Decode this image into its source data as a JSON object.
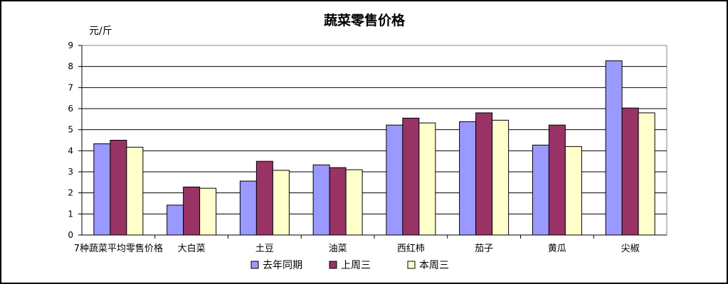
{
  "chart_data": {
    "type": "bar",
    "title": "蔬菜零售价格",
    "ylabel": "元/斤",
    "xlabel": "",
    "ylim": [
      0,
      9
    ],
    "yticks": [
      0,
      1,
      2,
      3,
      4,
      5,
      6,
      7,
      8,
      9
    ],
    "grid": true,
    "legend_position": "bottom",
    "categories": [
      "7种蔬菜平均零售价格",
      "大白菜",
      "土豆",
      "油菜",
      "西红柿",
      "茄子",
      "黄瓜",
      "尖椒"
    ],
    "series": [
      {
        "name": "去年同期",
        "color": "#9999FF",
        "values": [
          4.33,
          1.42,
          2.56,
          3.33,
          5.22,
          5.38,
          4.27,
          8.27
        ]
      },
      {
        "name": "上周三",
        "color": "#993366",
        "values": [
          4.5,
          2.28,
          3.5,
          3.2,
          5.55,
          5.8,
          5.22,
          6.03
        ]
      },
      {
        "name": "本周三",
        "color": "#FFFFCC",
        "values": [
          4.17,
          2.22,
          3.07,
          3.1,
          5.32,
          5.45,
          4.2,
          5.8
        ]
      }
    ]
  }
}
